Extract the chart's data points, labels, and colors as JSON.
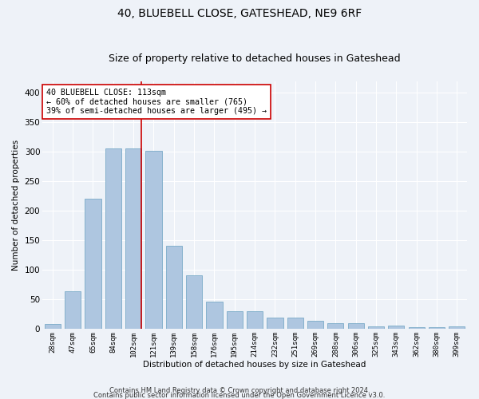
{
  "title1": "40, BLUEBELL CLOSE, GATESHEAD, NE9 6RF",
  "title2": "Size of property relative to detached houses in Gateshead",
  "xlabel": "Distribution of detached houses by size in Gateshead",
  "ylabel": "Number of detached properties",
  "categories": [
    "28sqm",
    "47sqm",
    "65sqm",
    "84sqm",
    "102sqm",
    "121sqm",
    "139sqm",
    "158sqm",
    "176sqm",
    "195sqm",
    "214sqm",
    "232sqm",
    "251sqm",
    "269sqm",
    "288sqm",
    "306sqm",
    "325sqm",
    "343sqm",
    "362sqm",
    "380sqm",
    "399sqm"
  ],
  "values": [
    8,
    64,
    221,
    305,
    305,
    302,
    140,
    90,
    46,
    30,
    30,
    19,
    19,
    14,
    10,
    10,
    4,
    5,
    2,
    2,
    4
  ],
  "bar_color": "#aec6e0",
  "bar_edge_color": "#7aaac8",
  "vline_x_index": 4,
  "vline_color": "#cc0000",
  "annotation_line1": "40 BLUEBELL CLOSE: 113sqm",
  "annotation_line2": "← 60% of detached houses are smaller (765)",
  "annotation_line3": "39% of semi-detached houses are larger (495) →",
  "annotation_box_color": "#ffffff",
  "annotation_box_edge": "#cc0000",
  "footnote1": "Contains HM Land Registry data © Crown copyright and database right 2024.",
  "footnote2": "Contains public sector information licensed under the Open Government Licence v3.0.",
  "ylim": [
    0,
    420
  ],
  "yticks": [
    0,
    50,
    100,
    150,
    200,
    250,
    300,
    350,
    400
  ],
  "background_color": "#eef2f8",
  "grid_color": "#ffffff",
  "title1_fontsize": 10,
  "title2_fontsize": 9,
  "bar_width": 0.8
}
